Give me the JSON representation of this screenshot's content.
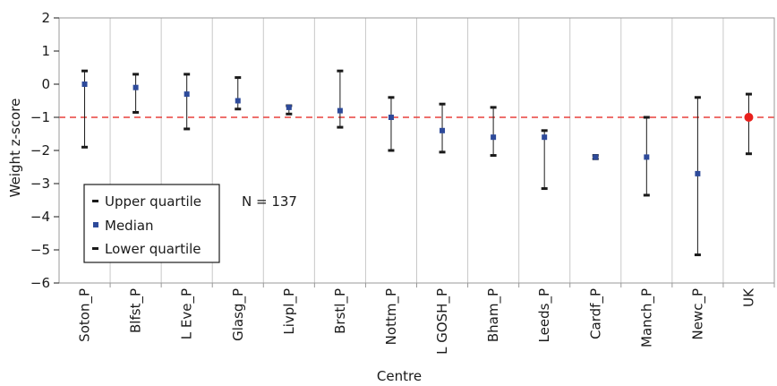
{
  "chart_data": {
    "type": "scatter",
    "title": "",
    "xlabel": "Centre",
    "ylabel": "Weight z-score",
    "ylim": [
      -6,
      2
    ],
    "yticks": [
      2,
      1,
      0,
      -1,
      -2,
      -3,
      -4,
      -5,
      -6
    ],
    "ytick_labels": [
      "2",
      "1",
      "0",
      "−1",
      "−2",
      "−3",
      "−4",
      "−5",
      "−6"
    ],
    "grid": "vertical",
    "reference_line": {
      "y": -1,
      "style": "dashed",
      "color": "#e8403c"
    },
    "categories": [
      "Soton_P",
      "Blfst_P",
      "L Eve_P",
      "Glasg_P",
      "Livpl_P",
      "Brstl_P",
      "Nottm_P",
      "L GOSH_P",
      "Bham_P",
      "Leeds_P",
      "Cardf_P",
      "Manch_P",
      "Newc_P",
      "UK"
    ],
    "series": [
      {
        "name": "Upper quartile",
        "values": [
          0.4,
          0.3,
          0.3,
          0.2,
          -0.65,
          0.4,
          -0.4,
          -0.6,
          -0.7,
          -1.4,
          -2.15,
          -1.0,
          -0.4,
          -0.3
        ]
      },
      {
        "name": "Median",
        "values": [
          0.0,
          -0.1,
          -0.3,
          -0.5,
          -0.7,
          -0.8,
          -1.0,
          -1.4,
          -1.6,
          -1.6,
          -2.2,
          -2.2,
          -2.7,
          -1.0
        ]
      },
      {
        "name": "Lower quartile",
        "values": [
          -1.9,
          -0.85,
          -1.35,
          -0.75,
          -0.9,
          -1.3,
          -2.0,
          -2.05,
          -2.15,
          -3.15,
          -2.25,
          -3.35,
          -5.15,
          -2.1
        ]
      }
    ],
    "highlight_category": "UK",
    "colors": {
      "median": "#2d4a9a",
      "highlight": "#e8201c",
      "quartile": "#1a1a1a",
      "grid": "#c8c8c8",
      "plot_border": "#999999"
    },
    "legend": {
      "placement": "bottom-left",
      "entries": [
        "Upper quartile",
        "Median",
        "Lower quartile"
      ]
    },
    "annotation": "N = 137"
  }
}
